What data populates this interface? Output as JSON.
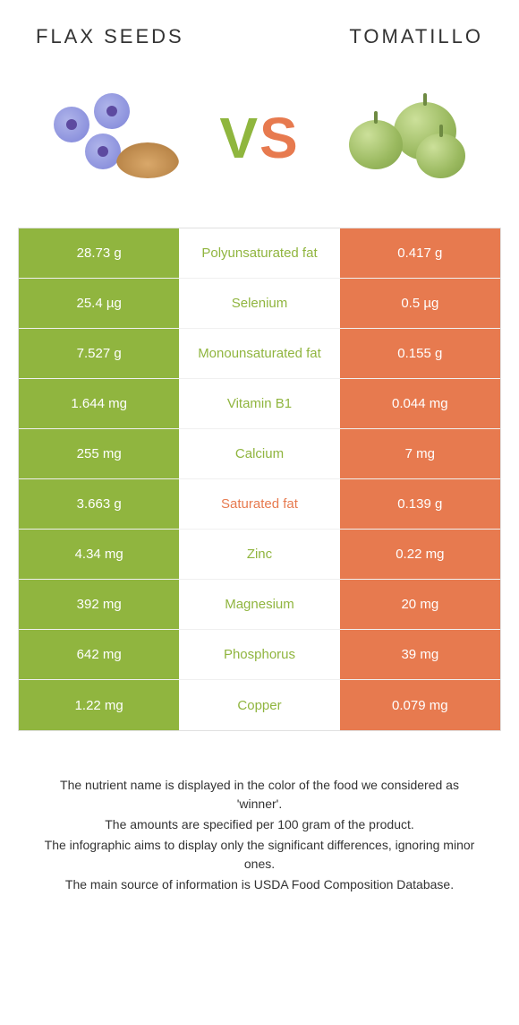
{
  "colors": {
    "flax": "#90b53f",
    "tomatillo": "#e77a4f",
    "text_dark": "#333333",
    "white": "#ffffff",
    "border": "#e0e0e0"
  },
  "header": {
    "left_title": "Flax seeds",
    "right_title": "Tomatillo",
    "vs_v": "V",
    "vs_s": "S"
  },
  "table": {
    "rows": [
      {
        "left": "28.73 g",
        "label": "Polyunsaturated fat",
        "right": "0.417 g",
        "winner": "left"
      },
      {
        "left": "25.4 µg",
        "label": "Selenium",
        "right": "0.5 µg",
        "winner": "left"
      },
      {
        "left": "7.527 g",
        "label": "Monounsaturated fat",
        "right": "0.155 g",
        "winner": "left"
      },
      {
        "left": "1.644 mg",
        "label": "Vitamin B1",
        "right": "0.044 mg",
        "winner": "left"
      },
      {
        "left": "255 mg",
        "label": "Calcium",
        "right": "7 mg",
        "winner": "left"
      },
      {
        "left": "3.663 g",
        "label": "Saturated fat",
        "right": "0.139 g",
        "winner": "right"
      },
      {
        "left": "4.34 mg",
        "label": "Zinc",
        "right": "0.22 mg",
        "winner": "left"
      },
      {
        "left": "392 mg",
        "label": "Magnesium",
        "right": "20 mg",
        "winner": "left"
      },
      {
        "left": "642 mg",
        "label": "Phosphorus",
        "right": "39 mg",
        "winner": "left"
      },
      {
        "left": "1.22 mg",
        "label": "Copper",
        "right": "0.079 mg",
        "winner": "left"
      }
    ]
  },
  "footnotes": [
    "The nutrient name is displayed in the color of the food we considered as 'winner'.",
    "The amounts are specified per 100 gram of the product.",
    "The infographic aims to display only the significant differences, ignoring minor ones.",
    "The main source of information is USDA Food Composition Database."
  ]
}
